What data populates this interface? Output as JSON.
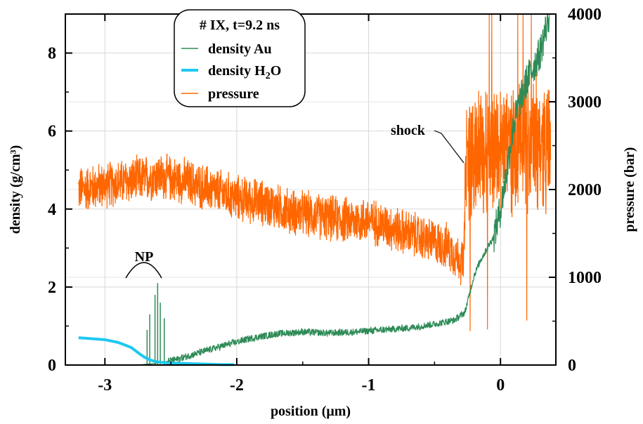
{
  "chart_data": {
    "type": "line",
    "title": "",
    "xlabel": "position (μm)",
    "ylabel": "density (g/cm³)",
    "ylabel_right": "pressure (bar)",
    "xlim": [
      -3.3,
      0.42
    ],
    "ylim": [
      0,
      9.0
    ],
    "ylim_right": [
      0,
      4000
    ],
    "grid": true,
    "legend_position": "top-center",
    "legend": {
      "title": "# IX, t=9.2 ns",
      "entries": [
        "density Au",
        "density H2O",
        "pressure"
      ]
    },
    "x_ticks": [
      -3,
      -2,
      -1,
      0
    ],
    "x_tick_labels": [
      "-3",
      "-2",
      "-1",
      "0"
    ],
    "y_ticks": [
      0,
      2,
      4,
      6,
      8
    ],
    "y_tick_labels": [
      "0",
      "2",
      "4",
      "6",
      "8"
    ],
    "y_right_ticks": [
      0,
      1000,
      2000,
      3000,
      4000
    ],
    "y_right_tick_labels": [
      "0",
      "1000",
      "2000",
      "3000",
      "4000"
    ],
    "series": [
      {
        "name": "density Au",
        "color": "#2e8b57",
        "axis": "left",
        "x": [
          -3.2,
          -2.75,
          -2.6,
          -2.52,
          -2.45,
          -2.3,
          -2.1,
          -1.9,
          -1.7,
          -1.5,
          -1.3,
          -1.1,
          -0.9,
          -0.7,
          -0.5,
          -0.35,
          -0.27,
          -0.2,
          -0.15,
          -0.1,
          -0.05,
          0.0,
          0.05,
          0.1,
          0.2,
          0.3,
          0.37
        ],
        "y": [
          0.0,
          0.0,
          0.05,
          0.1,
          0.15,
          0.3,
          0.5,
          0.68,
          0.8,
          0.85,
          0.82,
          0.85,
          0.9,
          0.95,
          1.05,
          1.15,
          1.35,
          2.3,
          2.7,
          3.0,
          3.3,
          4.0,
          5.0,
          6.2,
          7.3,
          8.0,
          9.0
        ]
      },
      {
        "name": "density H2O",
        "color": "#1ec8f0",
        "axis": "left",
        "x": [
          -3.2,
          -3.0,
          -2.9,
          -2.8,
          -2.75,
          -2.7,
          -2.65,
          -2.6,
          -2.55,
          -2.5,
          -2.4,
          -2.3,
          -2.2,
          -2.1,
          -2.02
        ],
        "y": [
          0.7,
          0.65,
          0.58,
          0.45,
          0.32,
          0.2,
          0.12,
          0.08,
          0.06,
          0.05,
          0.04,
          0.03,
          0.02,
          0.01,
          0.01
        ]
      },
      {
        "name": "pressure",
        "color": "#ff6600",
        "axis": "right",
        "x": [
          -3.2,
          -3.0,
          -2.8,
          -2.6,
          -2.4,
          -2.2,
          -2.0,
          -1.8,
          -1.6,
          -1.4,
          -1.2,
          -1.0,
          -0.8,
          -0.6,
          -0.4,
          -0.28,
          -0.26,
          -0.2,
          -0.1,
          0.0,
          0.1,
          0.2,
          0.3,
          0.38
        ],
        "y": [
          2000,
          2050,
          2100,
          2150,
          2100,
          2000,
          1900,
          1850,
          1750,
          1700,
          1650,
          1650,
          1550,
          1450,
          1350,
          1150,
          2300,
          2400,
          2450,
          2500,
          2500,
          2500,
          2550,
          2500
        ]
      }
    ],
    "nanoparticle_spikes": {
      "x": [
        -2.68,
        -2.66,
        -2.62,
        -2.6,
        -2.58,
        -2.55
      ],
      "y": [
        0.9,
        1.3,
        1.8,
        2.1,
        1.6,
        1.2
      ]
    },
    "annotations": [
      {
        "text": "NP",
        "x": -2.62,
        "y": 2.45
      },
      {
        "text": "shock",
        "x": -0.6,
        "y": 5.95
      }
    ]
  }
}
